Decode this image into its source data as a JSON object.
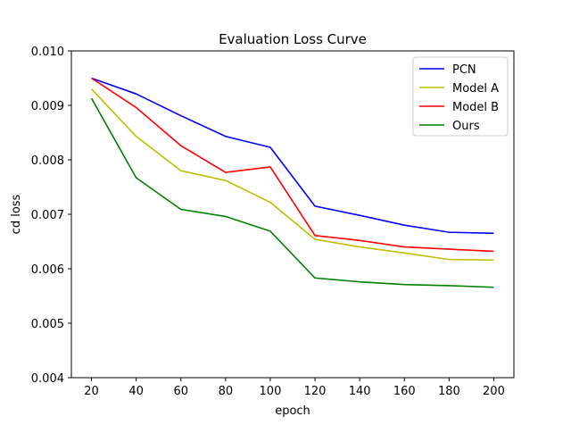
{
  "chart_data": {
    "type": "line",
    "title": "Evaluation Loss Curve",
    "xlabel": "epoch",
    "ylabel": "cd loss",
    "x": [
      20,
      40,
      60,
      80,
      100,
      120,
      140,
      160,
      180,
      200
    ],
    "xticks": [
      "20",
      "40",
      "60",
      "80",
      "100",
      "120",
      "140",
      "160",
      "180",
      "200"
    ],
    "xlim": [
      11,
      209
    ],
    "ylim": [
      0.004,
      0.01
    ],
    "yticks": [
      0.004,
      0.005,
      0.006,
      0.007,
      0.008,
      0.009,
      0.01
    ],
    "ytick_labels": [
      "0.004",
      "0.005",
      "0.006",
      "0.007",
      "0.008",
      "0.009",
      "0.010"
    ],
    "grid": false,
    "legend_position": "top-right",
    "series": [
      {
        "name": "PCN",
        "color": "#0000ff",
        "values": [
          0.0095,
          0.00921,
          0.00881,
          0.00843,
          0.00823,
          0.00715,
          0.00698,
          0.0068,
          0.00667,
          0.00665
        ]
      },
      {
        "name": "Model A",
        "color": "#bfbf00",
        "values": [
          0.0093,
          0.00843,
          0.0078,
          0.00762,
          0.00722,
          0.00654,
          0.0064,
          0.00629,
          0.00617,
          0.00616
        ]
      },
      {
        "name": "Model B",
        "color": "#ff0000",
        "values": [
          0.0095,
          0.00896,
          0.00826,
          0.00777,
          0.00787,
          0.00661,
          0.00652,
          0.0064,
          0.00636,
          0.00632
        ]
      },
      {
        "name": "Ours",
        "color": "#008000",
        "values": [
          0.00913,
          0.00767,
          0.00709,
          0.00696,
          0.00669,
          0.00583,
          0.00576,
          0.00571,
          0.00569,
          0.00566
        ]
      }
    ]
  }
}
